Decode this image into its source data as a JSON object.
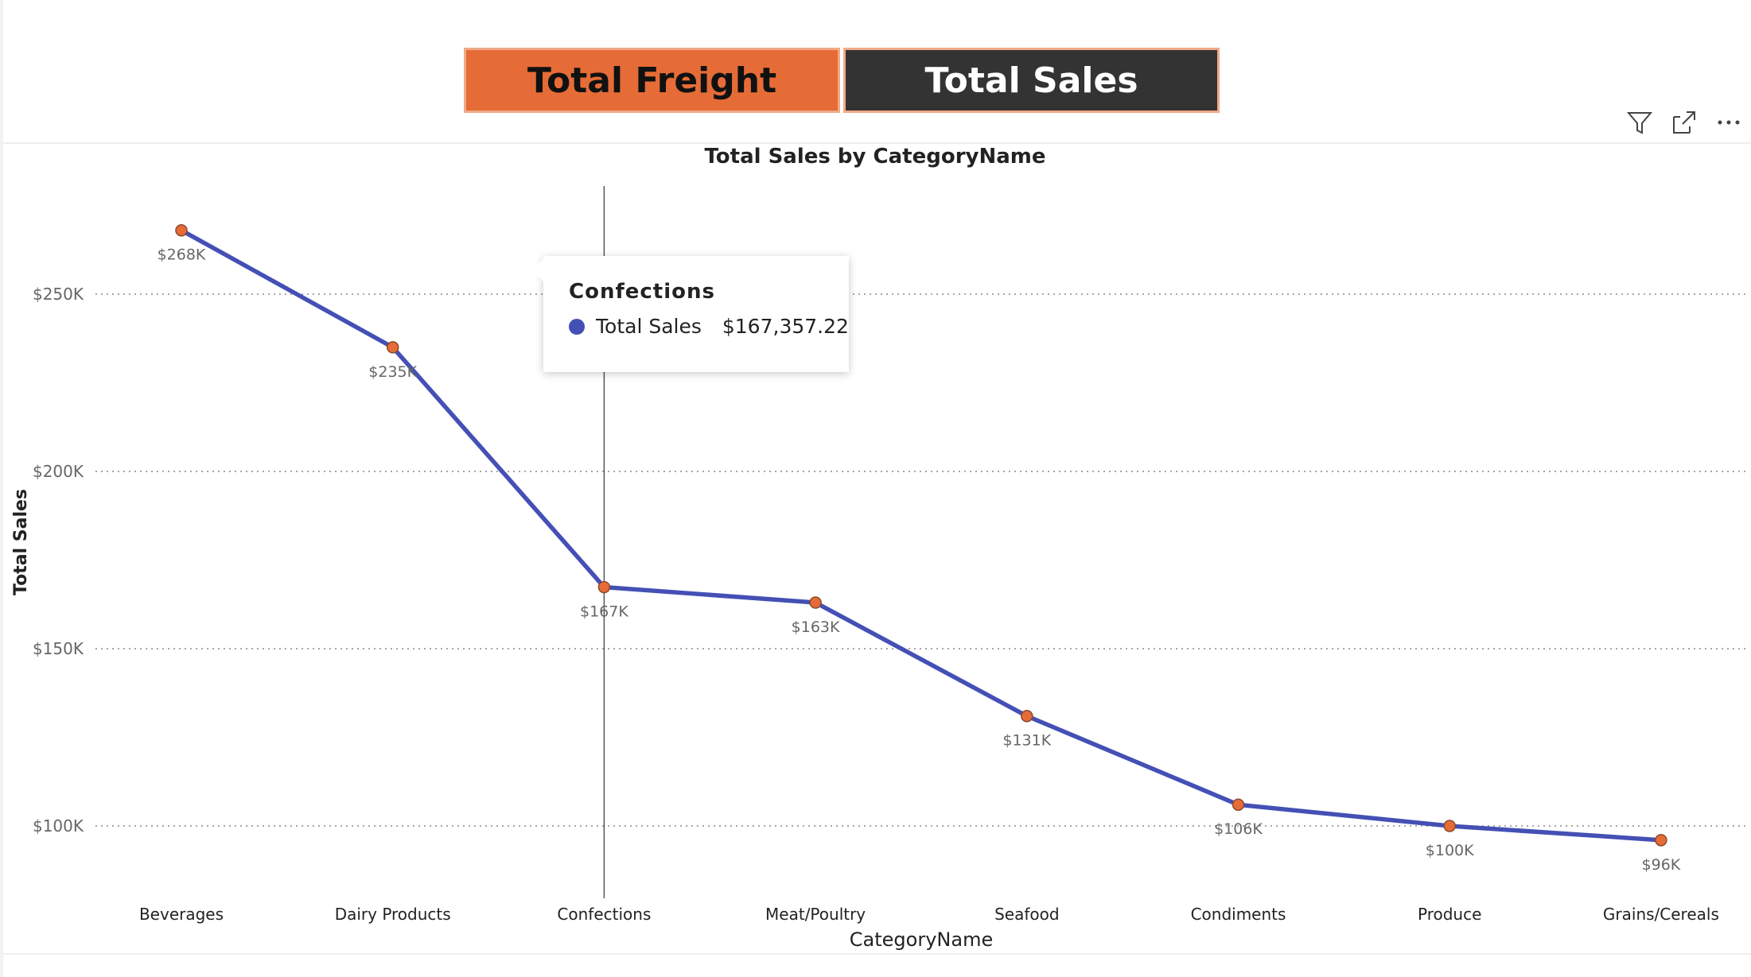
{
  "buttons": {
    "freight_label": "Total Freight",
    "sales_label": "Total Sales"
  },
  "visual_header": {
    "filter_icon": "filter-icon",
    "focus_icon": "focus-mode-icon",
    "more_icon": "more-options-icon"
  },
  "tooltip": {
    "category": "Confections",
    "series": "Total Sales",
    "value": "$167,357.22",
    "dot_color": "#4450b5"
  },
  "colors": {
    "line": "#4450b5",
    "marker": "#e66c37",
    "freight_button": "#e66c37",
    "sales_button": "#333333"
  },
  "chart_data": {
    "type": "line",
    "title": "Total Sales by CategoryName",
    "xlabel": "CategoryName",
    "ylabel": "Total Sales",
    "categories": [
      "Beverages",
      "Dairy Products",
      "Confections",
      "Meat/Poultry",
      "Seafood",
      "Condiments",
      "Produce",
      "Grains/Cereals"
    ],
    "series": [
      {
        "name": "Total Sales",
        "values": [
          268000,
          235000,
          167357.22,
          163000,
          131000,
          106000,
          100000,
          96000
        ],
        "labels": [
          "$268K",
          "$235K",
          "$167K",
          "$163K",
          "$131K",
          "$106K",
          "$100K",
          "$96K"
        ]
      }
    ],
    "yticks": [
      100000,
      150000,
      200000,
      250000
    ],
    "ytick_labels": [
      "$100K",
      "$150K",
      "$200K",
      "$250K"
    ],
    "grid": true,
    "highlighted_category": "Confections"
  }
}
